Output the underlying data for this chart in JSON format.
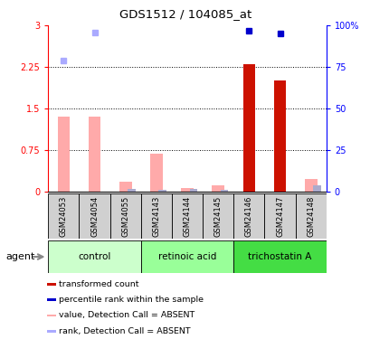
{
  "title": "GDS1512 / 104085_at",
  "samples": [
    "GSM24053",
    "GSM24054",
    "GSM24055",
    "GSM24143",
    "GSM24144",
    "GSM24145",
    "GSM24146",
    "GSM24147",
    "GSM24148"
  ],
  "groups": [
    {
      "name": "control",
      "color": "#ccffcc",
      "samples": [
        0,
        1,
        2
      ]
    },
    {
      "name": "retinoic acid",
      "color": "#99ff99",
      "samples": [
        3,
        4,
        5
      ]
    },
    {
      "name": "trichostatin A",
      "color": "#44dd44",
      "samples": [
        6,
        7,
        8
      ]
    }
  ],
  "red_bars": [
    null,
    null,
    null,
    null,
    null,
    null,
    2.3,
    2.0,
    null
  ],
  "pink_bars": [
    1.35,
    1.35,
    0.18,
    0.68,
    0.07,
    0.12,
    null,
    null,
    0.22
  ],
  "blue_dots_right": [
    null,
    null,
    null,
    null,
    null,
    null,
    97.0,
    95.0,
    null
  ],
  "light_blue_dots_right": [
    79.0,
    95.5,
    null,
    null,
    null,
    null,
    null,
    null,
    null
  ],
  "small_blue_bars_right": [
    null,
    null,
    1.5,
    1.2,
    1.7,
    1.0,
    null,
    null,
    4.0
  ],
  "ylim_left": [
    0,
    3.0
  ],
  "ylim_right": [
    0,
    100
  ],
  "yticks_left": [
    0,
    0.75,
    1.5,
    2.25,
    3.0
  ],
  "ytick_labels_left": [
    "0",
    "0.75",
    "1.5",
    "2.25",
    "3"
  ],
  "ytick_labels_right": [
    "0",
    "25",
    "50",
    "75",
    "100%"
  ],
  "hlines": [
    0.75,
    1.5,
    2.25
  ],
  "red_color": "#cc1100",
  "pink_color": "#ffaaaa",
  "blue_color": "#0000cc",
  "light_blue_color": "#aaaaff",
  "small_blue_color": "#aaaacc",
  "gray_box_color": "#d0d0d0",
  "agent_label": "agent",
  "legend_items": [
    {
      "color": "#cc1100",
      "label": "transformed count"
    },
    {
      "color": "#0000cc",
      "label": "percentile rank within the sample"
    },
    {
      "color": "#ffaaaa",
      "label": "value, Detection Call = ABSENT"
    },
    {
      "color": "#aaaaff",
      "label": "rank, Detection Call = ABSENT"
    }
  ]
}
